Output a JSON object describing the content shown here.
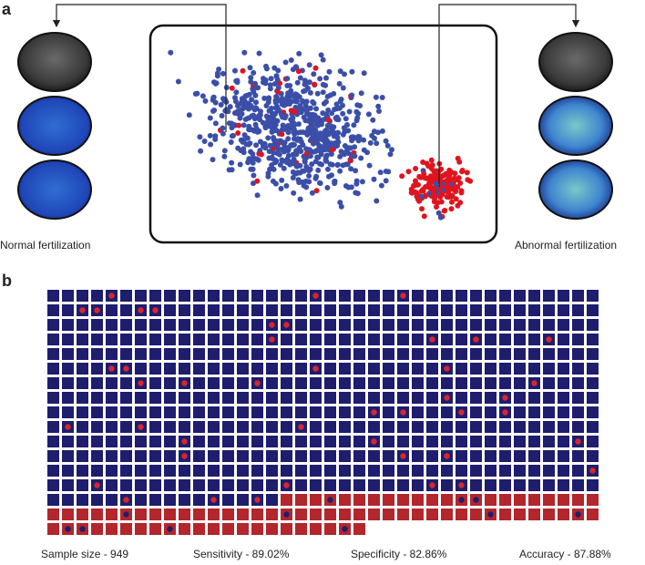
{
  "panel_a": {
    "label": "a",
    "left_caption": "Normal fertilization",
    "right_caption": "Abnormal fertilization"
  },
  "panel_b": {
    "label": "b",
    "stats": [
      "Sample size - 949",
      "Sensitivity - 89.02%",
      "Specificity - 82.86%",
      "Accuracy - 87.88%"
    ]
  }
}
